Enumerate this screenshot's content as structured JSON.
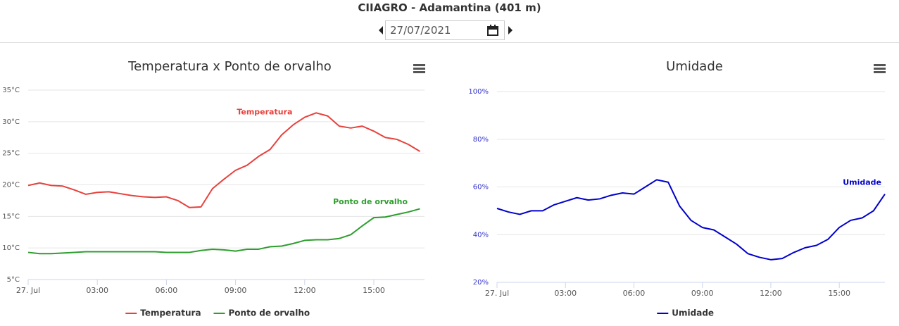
{
  "header": {
    "title": "CIIAGRO - Adamantina (401 m)",
    "date": "27/07/2021"
  },
  "chart_data": [
    {
      "type": "line",
      "title": "Temperatura x Ponto de orvalho",
      "x": [
        0,
        0.5,
        1,
        1.5,
        2,
        2.5,
        3,
        3.5,
        4,
        4.5,
        5,
        5.5,
        6,
        6.5,
        7,
        7.5,
        8,
        8.5,
        9,
        9.5,
        10,
        10.5,
        11,
        11.5,
        12,
        12.5,
        13,
        13.5,
        14,
        14.5,
        15,
        15.5,
        16,
        16.5,
        17
      ],
      "xlim": [
        0,
        17.2
      ],
      "xticks": [
        {
          "value": 0,
          "label": "27. Jul"
        },
        {
          "value": 3,
          "label": "03:00"
        },
        {
          "value": 6,
          "label": "06:00"
        },
        {
          "value": 9,
          "label": "09:00"
        },
        {
          "value": 12,
          "label": "12:00"
        },
        {
          "value": 15,
          "label": "15:00"
        }
      ],
      "ylim": [
        5,
        35
      ],
      "yticks": [
        {
          "value": 5,
          "label": "5°C"
        },
        {
          "value": 10,
          "label": "10°C"
        },
        {
          "value": 15,
          "label": "15°C"
        },
        {
          "value": 20,
          "label": "20°C"
        },
        {
          "value": 25,
          "label": "25°C"
        },
        {
          "value": 30,
          "label": "30°C"
        },
        {
          "value": 35,
          "label": "35°C"
        }
      ],
      "grid": true,
      "legend": "bottom",
      "series": [
        {
          "name": "Temperatura",
          "color": "#e8413c",
          "values": [
            19.9,
            20.3,
            19.9,
            19.8,
            19.2,
            18.5,
            18.8,
            18.9,
            18.6,
            18.3,
            18.1,
            18.0,
            18.1,
            17.5,
            16.4,
            16.5,
            19.4,
            20.9,
            22.3,
            23.1,
            24.5,
            25.6,
            27.9,
            29.5,
            30.7,
            31.4,
            30.9,
            29.3,
            29.0,
            29.3,
            28.5,
            27.5,
            27.2,
            26.4,
            25.3
          ]
        },
        {
          "name": "Ponto de orvalho",
          "color": "#2e9e2e",
          "values": [
            9.3,
            9.1,
            9.1,
            9.2,
            9.3,
            9.4,
            9.4,
            9.4,
            9.4,
            9.4,
            9.4,
            9.4,
            9.3,
            9.3,
            9.3,
            9.6,
            9.8,
            9.7,
            9.5,
            9.8,
            9.8,
            10.2,
            10.3,
            10.7,
            11.2,
            11.3,
            11.3,
            11.5,
            12.1,
            13.5,
            14.8,
            14.9,
            15.3,
            15.7,
            16.2
          ]
        }
      ]
    },
    {
      "type": "line",
      "title": "Umidade",
      "x": [
        0,
        0.5,
        1,
        1.5,
        2,
        2.5,
        3,
        3.5,
        4,
        4.5,
        5,
        5.5,
        6,
        6.5,
        7,
        7.5,
        8,
        8.5,
        9,
        9.5,
        10,
        10.5,
        11,
        11.5,
        12,
        12.5,
        13,
        13.5,
        14,
        14.5,
        15,
        15.5,
        16,
        16.5,
        17
      ],
      "xlim": [
        0,
        17
      ],
      "xticks": [
        {
          "value": 0,
          "label": "27. Jul"
        },
        {
          "value": 3,
          "label": "03:00"
        },
        {
          "value": 6,
          "label": "06:00"
        },
        {
          "value": 9,
          "label": "09:00"
        },
        {
          "value": 12,
          "label": "12:00"
        },
        {
          "value": 15,
          "label": "15:00"
        }
      ],
      "ylim": [
        20,
        100
      ],
      "yticks": [
        {
          "value": 20,
          "label": "20%"
        },
        {
          "value": 40,
          "label": "40%"
        },
        {
          "value": 60,
          "label": "60%"
        },
        {
          "value": 80,
          "label": "80%"
        },
        {
          "value": 100,
          "label": "100%"
        }
      ],
      "ytick_color": "#3333cc",
      "grid": true,
      "legend": "bottom",
      "series": [
        {
          "name": "Umidade",
          "color": "#0000cc",
          "values": [
            51,
            49.5,
            48.5,
            50,
            50,
            52.5,
            54,
            55.5,
            54.5,
            55,
            56.5,
            57.5,
            57,
            60,
            63,
            62,
            52,
            46,
            43,
            42,
            39,
            36,
            32,
            30.5,
            29.5,
            30,
            32.5,
            34.5,
            35.5,
            38,
            43,
            46,
            47,
            50,
            57
          ]
        }
      ]
    }
  ]
}
